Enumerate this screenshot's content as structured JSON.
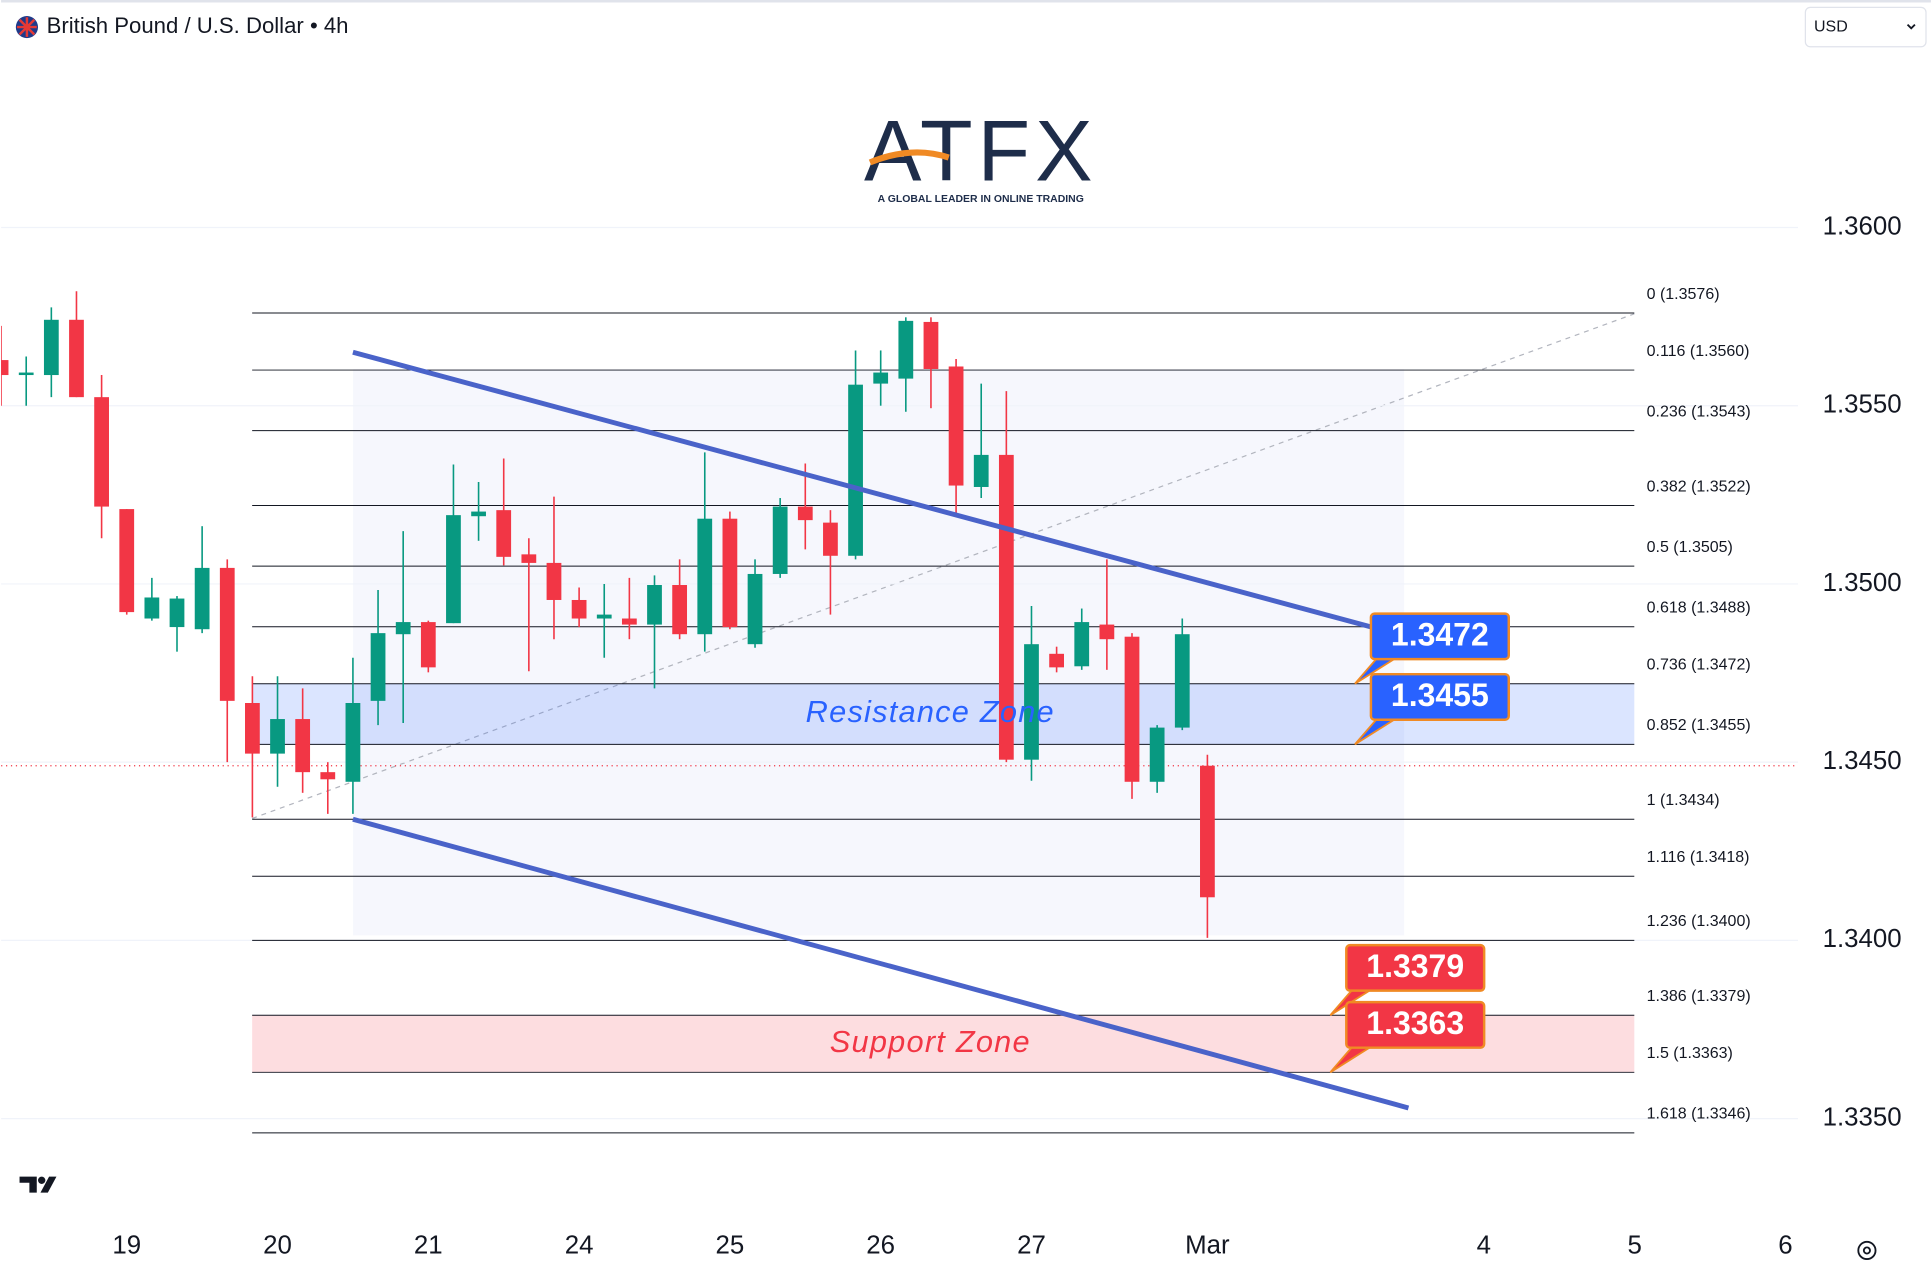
{
  "header": {
    "symbol": "British Pound / U.S. Dollar • 4h",
    "currency": "USD"
  },
  "logo": {
    "name": "ATFX",
    "tagline": "A GLOBAL LEADER IN ONLINE TRADING"
  },
  "chart_data": {
    "type": "candlestick",
    "xlim": [
      0,
      71.5
    ],
    "xticks": [
      {
        "value": 5,
        "label": "19"
      },
      {
        "value": 11,
        "label": "20"
      },
      {
        "value": 17,
        "label": "21"
      },
      {
        "value": 23,
        "label": "24"
      },
      {
        "value": 29,
        "label": "25"
      },
      {
        "value": 35,
        "label": "26"
      },
      {
        "value": 41,
        "label": "27"
      },
      {
        "value": 48,
        "label": "Mar"
      },
      {
        "value": 59,
        "label": "4"
      },
      {
        "value": 65,
        "label": "5"
      },
      {
        "value": 71,
        "label": "6"
      }
    ],
    "ylim": [
      1.3322,
      1.365
    ],
    "yticks": [
      {
        "value": 1.335,
        "label": "1.3350"
      },
      {
        "value": 1.34,
        "label": "1.3400"
      },
      {
        "value": 1.345,
        "label": "1.3450"
      },
      {
        "value": 1.35,
        "label": "1.3500"
      },
      {
        "value": 1.355,
        "label": "1.3550"
      },
      {
        "value": 1.36,
        "label": "1.3600"
      }
    ],
    "grid": true,
    "up_color": "#089981",
    "down_color": "#f23645",
    "open": [
      1.35628,
      1.35586,
      1.35586,
      1.35741,
      1.35524,
      1.3521,
      1.34903,
      1.34879,
      1.34873,
      1.35045,
      1.34666,
      1.34524,
      1.34621,
      1.34472,
      1.34445,
      1.34672,
      1.34859,
      1.34893,
      1.3489,
      1.3519,
      1.35207,
      1.35083,
      1.35059,
      1.34955,
      1.34903,
      1.34903,
      1.34886,
      1.34997,
      1.34859,
      1.35183,
      1.34831,
      1.35028,
      1.35217,
      1.35172,
      1.35079,
      1.35562,
      1.35576,
      1.35735,
      1.3561,
      1.35272,
      1.35362,
      1.34507,
      1.34804,
      1.34769,
      1.34886,
      1.34852,
      1.34445,
      1.34597,
      1.3449
    ],
    "high": [
      1.35724,
      1.35638,
      1.35776,
      1.35821,
      1.35586,
      1.3521,
      1.35017,
      1.34966,
      1.35162,
      1.35069,
      1.34741,
      1.34741,
      1.34707,
      1.345,
      1.34793,
      1.34983,
      1.35148,
      1.34897,
      1.35335,
      1.35286,
      1.35352,
      1.35128,
      1.35245,
      1.3499,
      1.35,
      1.35017,
      1.35024,
      1.35069,
      1.35369,
      1.35203,
      1.35069,
      1.35241,
      1.35338,
      1.35207,
      1.35655,
      1.35655,
      1.35748,
      1.35748,
      1.35631,
      1.35562,
      1.35541,
      1.34938,
      1.34824,
      1.34931,
      1.35069,
      1.34862,
      1.34604,
      1.34903,
      1.34521
    ],
    "low": [
      1.355,
      1.355,
      1.35524,
      1.35524,
      1.35128,
      1.34914,
      1.34897,
      1.3481,
      1.34862,
      1.345,
      1.34345,
      1.34431,
      1.34414,
      1.34355,
      1.34355,
      1.34604,
      1.3461,
      1.34752,
      1.3489,
      1.35121,
      1.35052,
      1.34755,
      1.34845,
      1.34879,
      1.34793,
      1.34845,
      1.34707,
      1.34845,
      1.3481,
      1.34873,
      1.34821,
      1.35017,
      1.35097,
      1.34914,
      1.35069,
      1.355,
      1.35483,
      1.35493,
      1.35197,
      1.35241,
      1.345,
      1.34448,
      1.34752,
      1.34759,
      1.34759,
      1.34397,
      1.34414,
      1.3459,
      1.34007
    ],
    "close": [
      1.35586,
      1.35593,
      1.35741,
      1.35524,
      1.35217,
      1.34921,
      1.34962,
      1.34959,
      1.35045,
      1.34672,
      1.34524,
      1.34621,
      1.34472,
      1.34452,
      1.34666,
      1.34862,
      1.34893,
      1.34766,
      1.35193,
      1.35203,
      1.35076,
      1.35059,
      1.34955,
      1.34903,
      1.34914,
      1.34886,
      1.34997,
      1.34859,
      1.35183,
      1.34879,
      1.35028,
      1.35217,
      1.35179,
      1.35079,
      1.35559,
      1.35593,
      1.35738,
      1.35603,
      1.35276,
      1.35362,
      1.34507,
      1.34831,
      1.34766,
      1.34893,
      1.34845,
      1.34445,
      1.34597,
      1.34859,
      1.34121
    ],
    "fib_levels": [
      {
        "value": 1.3576,
        "label": "0 (1.3576)"
      },
      {
        "value": 1.356,
        "label": "0.116 (1.3560)"
      },
      {
        "value": 1.3543,
        "label": "0.236 (1.3543)"
      },
      {
        "value": 1.3522,
        "label": "0.382 (1.3522)"
      },
      {
        "value": 1.3505,
        "label": "0.5 (1.3505)"
      },
      {
        "value": 1.3488,
        "label": "0.618 (1.3488)"
      },
      {
        "value": 1.3472,
        "label": "0.736 (1.3472)"
      },
      {
        "value": 1.3455,
        "label": "0.852 (1.3455)"
      },
      {
        "value": 1.3434,
        "label": "1 (1.3434)"
      },
      {
        "value": 1.3418,
        "label": "1.116 (1.3418)"
      },
      {
        "value": 1.34,
        "label": "1.236 (1.3400)"
      },
      {
        "value": 1.3379,
        "label": "1.386 (1.3379)"
      },
      {
        "value": 1.3363,
        "label": "1.5 (1.3363)"
      },
      {
        "value": 1.3346,
        "label": "1.618 (1.3346)"
      }
    ],
    "zones": [
      {
        "name": "Resistance Zone",
        "low": 1.3455,
        "high": 1.3472,
        "color": "#2962ff"
      },
      {
        "name": "Support Zone",
        "low": 1.3363,
        "high": 1.3379,
        "color": "#f23645"
      }
    ],
    "price_tags": [
      1.3472,
      1.3455,
      1.3379,
      1.3363
    ],
    "price_tag_colors": [
      "#2962ff",
      "#2962ff",
      "#f23645",
      "#f23645"
    ],
    "channel": [
      {
        "x": [
          14,
          55
        ],
        "y": [
          1.3565,
          1.3487
        ]
      },
      {
        "x": [
          14,
          56
        ],
        "y": [
          1.3434,
          1.3353
        ]
      }
    ],
    "channel_color": "#4a63c9",
    "last_price_line": 1.3449
  }
}
